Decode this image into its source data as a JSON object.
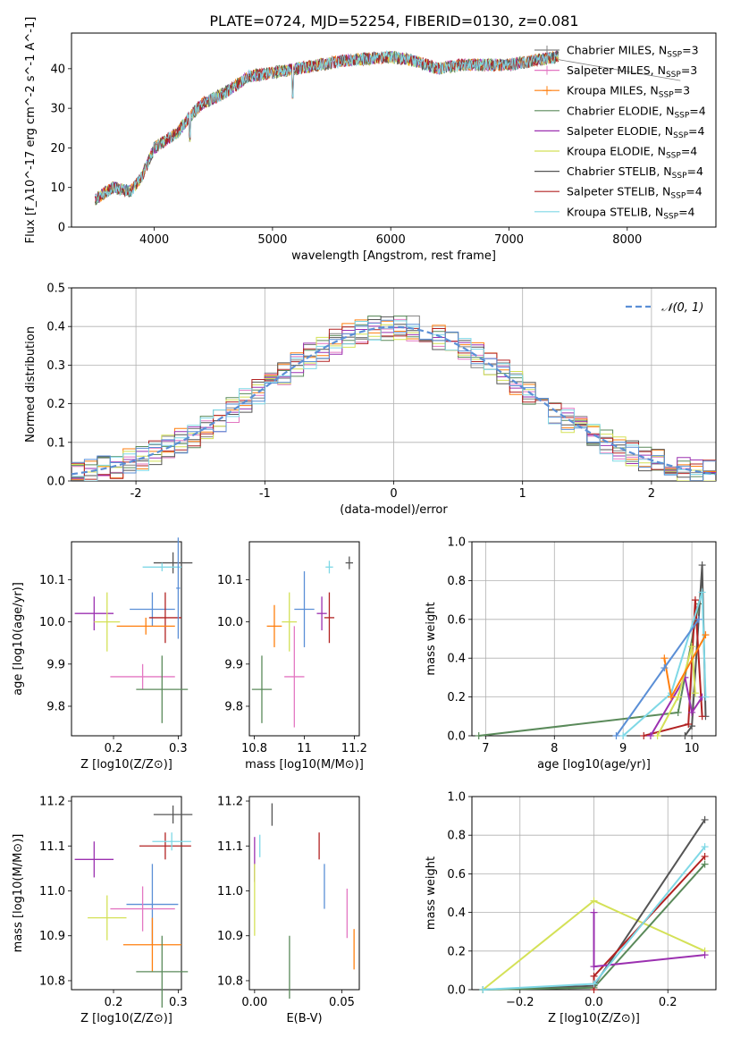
{
  "figure": {
    "title": "PLATE=0724, MJD=52254, FIBERID=0130, z=0.081"
  },
  "chart_data": [
    {
      "id": "spectrum",
      "type": "line",
      "xlabel": "wavelength [Angstrom, rest frame]",
      "ylabel": "Flux [f_λ10^-17 erg cm^-2 s^-1 A^-1]",
      "xlim": [
        3300,
        8750
      ],
      "ylim": [
        0,
        49
      ],
      "xticks": [
        4000,
        5000,
        6000,
        7000,
        8000
      ],
      "yticks": [
        0,
        10,
        20,
        30,
        40
      ],
      "grid": false,
      "legend_position": "right",
      "series": [
        {
          "name": "Chabrier MILES, N_SSP=3",
          "color": "#808080",
          "marker": "+"
        },
        {
          "name": "Salpeter MILES, N_SSP=3",
          "color": "#e377c2",
          "marker": "+"
        },
        {
          "name": "Kroupa MILES, N_SSP=3",
          "color": "#ff7f0e",
          "marker": "+"
        },
        {
          "name": "Chabrier ELODIE, N_SSP=4",
          "color": "#5a8a5a"
        },
        {
          "name": "Salpeter ELODIE, N_SSP=4",
          "color": "#9b30b0"
        },
        {
          "name": "Kroupa ELODIE, N_SSP=4",
          "color": "#d4e157"
        },
        {
          "name": "Chabrier STELIB, N_SSP=4",
          "color": "#555555"
        },
        {
          "name": "Salpeter STELIB, N_SSP=4",
          "color": "#b22222"
        },
        {
          "name": "Kroupa STELIB, N_SSP=4",
          "color": "#7fd8e6"
        }
      ],
      "approx_continuum": {
        "x": [
          3500,
          3650,
          3800,
          3900,
          4000,
          4100,
          4200,
          4300,
          4400,
          4600,
          4800,
          5000,
          5200,
          5400,
          5600,
          5800,
          6000,
          6200,
          6400,
          6600,
          6800,
          7000,
          7200,
          7400
        ],
        "y": [
          7,
          10,
          9,
          13,
          20,
          22,
          24,
          28,
          31,
          34,
          38,
          39,
          40,
          41,
          42,
          42.5,
          43,
          42,
          40,
          41,
          41,
          41,
          42,
          43
        ]
      },
      "data_extent": [
        3500,
        7420
      ]
    },
    {
      "id": "residuals",
      "type": "line",
      "xlabel": "(data-model)/error",
      "ylabel": "Normed distribution",
      "xlim": [
        -2.5,
        2.5
      ],
      "ylim": [
        0,
        0.5
      ],
      "xticks": [
        -2,
        -1,
        0,
        1,
        2
      ],
      "yticks": [
        0.0,
        0.1,
        0.2,
        0.3,
        0.4,
        0.5
      ],
      "grid": true,
      "legend": [
        {
          "label": "𝒩(0, 1)",
          "color": "#5b8fd6",
          "style": "dashed"
        }
      ],
      "legend_position": "top-right",
      "gaussian": {
        "mean": 0,
        "sigma": 1
      },
      "histogram_colors": [
        "#808080",
        "#e377c2",
        "#ff7f0e",
        "#5a8a5a",
        "#9b30b0",
        "#d4e157",
        "#555555",
        "#b22222",
        "#7fd8e6",
        "#5b8fd6"
      ]
    },
    {
      "id": "age_vs_Z",
      "type": "scatter",
      "xlabel": "Z [log10(Z/Z⊙)]",
      "ylabel": "age [log10(age/yr)]",
      "xlim": [
        0.135,
        0.305
      ],
      "ylim": [
        9.73,
        10.19
      ],
      "xticks": [
        0.2,
        0.3
      ],
      "ytick_labels": [
        "9.8",
        "9.9",
        "10.0",
        "10.1"
      ],
      "yticks": [
        9.8,
        9.9,
        10.0,
        10.1
      ],
      "points": [
        {
          "x": 0.292,
          "y": 10.14,
          "xerr": 0.03,
          "yerr": 0.025,
          "color": "#555555"
        },
        {
          "x": 0.275,
          "y": 10.13,
          "xerr": 0.03,
          "yerr": 0.01,
          "color": "#7fd8e6"
        },
        {
          "x": 0.17,
          "y": 10.02,
          "xerr": 0.03,
          "yerr": 0.04,
          "color": "#9b30b0"
        },
        {
          "x": 0.19,
          "y": 10.0,
          "xerr": 0.02,
          "yerr": 0.07,
          "color": "#d4e157"
        },
        {
          "x": 0.26,
          "y": 10.03,
          "xerr": 0.035,
          "yerr": 0.04,
          "color": "#5b8fd6"
        },
        {
          "x": 0.28,
          "y": 10.01,
          "xerr": 0.025,
          "yerr": 0.06,
          "color": "#b22222"
        },
        {
          "x": 0.25,
          "y": 9.99,
          "xerr": 0.045,
          "yerr": 0.02,
          "color": "#ff7f0e"
        },
        {
          "x": 0.245,
          "y": 9.87,
          "xerr": 0.05,
          "yerr": 0.03,
          "color": "#e377c2"
        },
        {
          "x": 0.275,
          "y": 9.84,
          "xerr": 0.04,
          "yerr": 0.08,
          "color": "#5a8a5a"
        },
        {
          "x": 0.3,
          "y": 10.08,
          "xerr": 0.003,
          "yerr": 0.12,
          "color": "#5b8fd6"
        }
      ]
    },
    {
      "id": "age_vs_mass",
      "type": "scatter",
      "xlabel": "mass [log10(M/M⊙)]",
      "xlim": [
        10.78,
        11.22
      ],
      "ylim": [
        9.73,
        10.19
      ],
      "xticks": [
        10.8,
        11.0,
        11.2
      ],
      "ytick_labels": [
        "9.8",
        "9.9",
        "10.0",
        "10.1"
      ],
      "yticks": [
        9.8,
        9.9,
        10.0,
        10.1
      ],
      "points": [
        {
          "x": 11.18,
          "y": 10.14,
          "xerr": 0.015,
          "yerr": 0.015,
          "color": "#555555"
        },
        {
          "x": 11.1,
          "y": 10.13,
          "xerr": 0.015,
          "yerr": 0.015,
          "color": "#7fd8e6"
        },
        {
          "x": 10.83,
          "y": 9.84,
          "xerr": 0.04,
          "yerr": 0.08,
          "color": "#5a8a5a"
        },
        {
          "x": 10.88,
          "y": 9.99,
          "xerr": 0.03,
          "yerr": 0.05,
          "color": "#ff7f0e"
        },
        {
          "x": 10.96,
          "y": 9.87,
          "xerr": 0.04,
          "yerr": 0.12,
          "color": "#e377c2"
        },
        {
          "x": 10.94,
          "y": 10.0,
          "xerr": 0.03,
          "yerr": 0.07,
          "color": "#d4e157"
        },
        {
          "x": 11.0,
          "y": 10.03,
          "xerr": 0.04,
          "yerr": 0.09,
          "color": "#5b8fd6"
        },
        {
          "x": 11.07,
          "y": 10.02,
          "xerr": 0.02,
          "yerr": 0.04,
          "color": "#9b30b0"
        },
        {
          "x": 11.1,
          "y": 10.01,
          "xerr": 0.02,
          "yerr": 0.06,
          "color": "#b22222"
        }
      ]
    },
    {
      "id": "massweight_vs_age",
      "type": "line",
      "xlabel": "age [log10(age/yr)]",
      "ylabel": "mass weight",
      "xlim": [
        6.8,
        10.35
      ],
      "ylim": [
        0,
        1.0
      ],
      "xticks": [
        7,
        8,
        9,
        10
      ],
      "yticks": [
        0.0,
        0.2,
        0.4,
        0.6,
        0.8,
        1.0
      ],
      "grid": true,
      "series": [
        {
          "color": "#5a8a5a",
          "x": [
            6.9,
            9.8,
            10.1
          ],
          "y": [
            0.0,
            0.12,
            0.68
          ]
        },
        {
          "color": "#555555",
          "x": [
            9.9,
            10.0,
            10.15,
            10.2
          ],
          "y": [
            0.0,
            0.05,
            0.88,
            0.1
          ]
        },
        {
          "color": "#b22222",
          "x": [
            9.3,
            9.95,
            10.05,
            10.15
          ],
          "y": [
            0.0,
            0.06,
            0.7,
            0.1
          ]
        },
        {
          "color": "#9b30b0",
          "x": [
            9.4,
            9.9,
            10.0,
            10.15
          ],
          "y": [
            0.0,
            0.3,
            0.12,
            0.2
          ]
        },
        {
          "color": "#d4e157",
          "x": [
            9.5,
            9.8,
            10.0,
            10.05
          ],
          "y": [
            0.0,
            0.2,
            0.46,
            0.22
          ]
        },
        {
          "color": "#7fd8e6",
          "x": [
            9.0,
            9.7,
            10.15,
            10.2
          ],
          "y": [
            0.0,
            0.22,
            0.74,
            0.2
          ]
        },
        {
          "color": "#ff7f0e",
          "x": [
            9.6,
            9.7,
            10.2
          ],
          "y": [
            0.4,
            0.2,
            0.52
          ]
        },
        {
          "color": "#5b8fd6",
          "x": [
            8.9,
            9.6,
            10.1
          ],
          "y": [
            0.0,
            0.35,
            0.6
          ]
        }
      ]
    },
    {
      "id": "mass_vs_Z",
      "type": "scatter",
      "xlabel": "Z [log10(Z/Z⊙)]",
      "ylabel": "mass [log10(M/M⊙)]",
      "xlim": [
        0.135,
        0.305
      ],
      "ylim": [
        10.78,
        11.21
      ],
      "xticks": [
        0.2,
        0.3
      ],
      "ytick_labels": [
        "10.8",
        "10.9",
        "11.0",
        "11.1",
        "11.2"
      ],
      "yticks": [
        10.8,
        10.9,
        11.0,
        11.1,
        11.2
      ],
      "points": [
        {
          "x": 0.292,
          "y": 11.17,
          "xerr": 0.03,
          "yerr": 0.02,
          "color": "#555555"
        },
        {
          "x": 0.17,
          "y": 11.07,
          "xerr": 0.03,
          "yerr": 0.04,
          "color": "#9b30b0"
        },
        {
          "x": 0.28,
          "y": 11.1,
          "xerr": 0.04,
          "yerr": 0.03,
          "color": "#b22222"
        },
        {
          "x": 0.29,
          "y": 11.11,
          "xerr": 0.03,
          "yerr": 0.02,
          "color": "#7fd8e6"
        },
        {
          "x": 0.26,
          "y": 10.97,
          "xerr": 0.04,
          "yerr": 0.09,
          "color": "#5b8fd6"
        },
        {
          "x": 0.245,
          "y": 10.96,
          "xerr": 0.05,
          "yerr": 0.05,
          "color": "#e377c2"
        },
        {
          "x": 0.19,
          "y": 10.94,
          "xerr": 0.03,
          "yerr": 0.05,
          "color": "#d4e157"
        },
        {
          "x": 0.26,
          "y": 10.88,
          "xerr": 0.045,
          "yerr": 0.06,
          "color": "#ff7f0e"
        },
        {
          "x": 0.275,
          "y": 10.82,
          "xerr": 0.04,
          "yerr": 0.08,
          "color": "#5a8a5a"
        }
      ]
    },
    {
      "id": "mass_vs_EBV",
      "type": "scatter",
      "xlabel": "E(B-V)",
      "xlim": [
        -0.003,
        0.06
      ],
      "ylim": [
        10.78,
        11.21
      ],
      "xticks": [
        0.0,
        0.05
      ],
      "xtick_labels": [
        "0.00",
        "0.05"
      ],
      "ytick_labels": [
        "10.8",
        "10.9",
        "11.0",
        "11.1",
        "11.2"
      ],
      "yticks": [
        10.8,
        10.9,
        11.0,
        11.1,
        11.2
      ],
      "points": [
        {
          "x": 0.01,
          "y": 11.17,
          "xerr": 0,
          "yerr": 0.025,
          "color": "#555555"
        },
        {
          "x": 0.003,
          "y": 11.1,
          "xerr": 0,
          "yerr": 0.025,
          "color": "#7fd8e6"
        },
        {
          "x": 0.0,
          "y": 11.07,
          "xerr": 0,
          "yerr": 0.05,
          "color": "#9b30b0"
        },
        {
          "x": 0.037,
          "y": 11.1,
          "xerr": 0,
          "yerr": 0.03,
          "color": "#b22222"
        },
        {
          "x": 0.04,
          "y": 11.01,
          "xerr": 0,
          "yerr": 0.05,
          "color": "#5b8fd6"
        },
        {
          "x": 0.0,
          "y": 10.98,
          "xerr": 0,
          "yerr": 0.08,
          "color": "#d4e157"
        },
        {
          "x": 0.053,
          "y": 10.95,
          "xerr": 0,
          "yerr": 0.055,
          "color": "#e377c2"
        },
        {
          "x": 0.057,
          "y": 10.87,
          "xerr": 0,
          "yerr": 0.045,
          "color": "#ff7f0e"
        },
        {
          "x": 0.02,
          "y": 10.83,
          "xerr": 0,
          "yerr": 0.07,
          "color": "#5a8a5a"
        }
      ]
    },
    {
      "id": "massweight_vs_Z",
      "type": "line",
      "xlabel": "Z [log10(Z/Z⊙)]",
      "ylabel": "mass weight",
      "xlim": [
        -0.33,
        0.33
      ],
      "ylim": [
        0,
        1.0
      ],
      "xticks": [
        -0.2,
        0.0,
        0.2
      ],
      "xtick_labels": [
        "−0.2",
        "0.0",
        "0.2"
      ],
      "yticks": [
        0.0,
        0.2,
        0.4,
        0.6,
        0.8,
        1.0
      ],
      "grid": true,
      "series": [
        {
          "color": "#d4e157",
          "x": [
            -0.3,
            0.0,
            0.3
          ],
          "y": [
            0.0,
            0.46,
            0.2
          ]
        },
        {
          "color": "#555555",
          "x": [
            -0.3,
            0.0,
            0.3
          ],
          "y": [
            0.0,
            0.02,
            0.88
          ]
        },
        {
          "color": "#5a8a5a",
          "x": [
            -0.3,
            0.0,
            0.3
          ],
          "y": [
            0.0,
            0.01,
            0.65
          ]
        },
        {
          "color": "#b22222",
          "x": [
            0.0,
            0.0,
            0.3
          ],
          "y": [
            0.0,
            0.07,
            0.69
          ]
        },
        {
          "color": "#9b30b0",
          "x": [
            0.0,
            0.0,
            0.0,
            0.3
          ],
          "y": [
            0.4,
            0.12,
            0.12,
            0.18
          ]
        },
        {
          "color": "#7fd8e6",
          "x": [
            -0.3,
            0.0,
            0.3
          ],
          "y": [
            0.0,
            0.03,
            0.74
          ]
        }
      ]
    }
  ]
}
